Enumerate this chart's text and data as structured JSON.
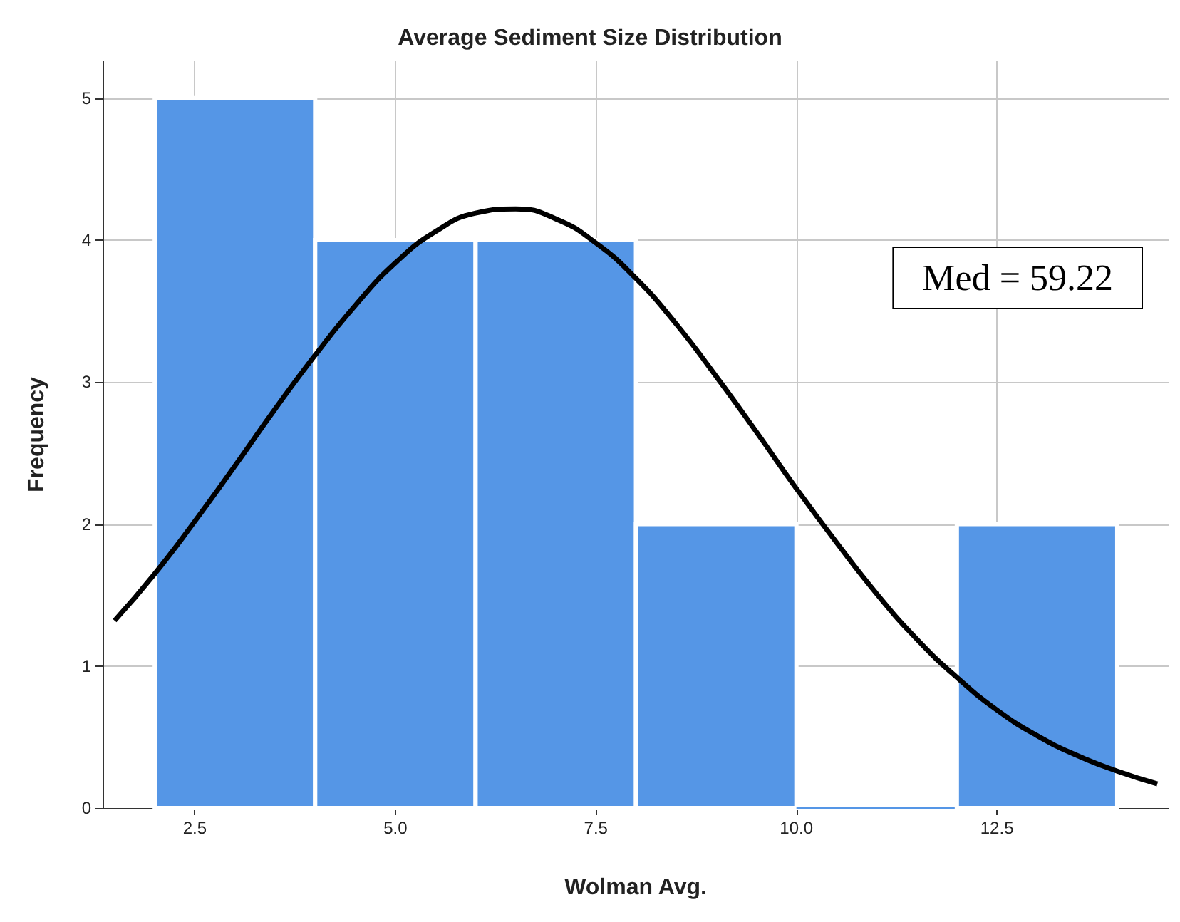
{
  "chart_data": {
    "type": "histogram",
    "title": "Average Sediment Size Distribution",
    "xlabel": "Wolman Avg.",
    "ylabel": "Frequency",
    "bins": [
      2,
      4,
      6,
      8,
      10,
      12,
      14
    ],
    "values": [
      5,
      4,
      4,
      2,
      0,
      2
    ],
    "color": "#5596e6",
    "series": [
      {
        "type": "line",
        "color": "#000000",
        "x": [
          1.5,
          2,
          2.5,
          3,
          3.5,
          4,
          4.5,
          5,
          5.5,
          6,
          6.5,
          7,
          7.5,
          8,
          8.5,
          9,
          9.5,
          10,
          10.5,
          11,
          11.5,
          12,
          12.5,
          13,
          13.5,
          14,
          14.5
        ],
        "values": [
          1.32,
          1.65,
          2.02,
          2.41,
          2.81,
          3.19,
          3.54,
          3.84,
          4.06,
          4.19,
          4.22,
          4.15,
          3.98,
          3.73,
          3.41,
          3.04,
          2.65,
          2.25,
          1.87,
          1.51,
          1.19,
          0.92,
          0.69,
          0.51,
          0.37,
          0.26,
          0.17
        ]
      }
    ],
    "xlim": [
      1.35,
      14.64
    ],
    "xticks": [
      {
        "value": 2.5,
        "label": "2.5"
      },
      {
        "value": 5,
        "label": "5.0"
      },
      {
        "value": 7.5,
        "label": "7.5"
      },
      {
        "value": 10,
        "label": "10.0"
      },
      {
        "value": 12.5,
        "label": "12.5"
      }
    ],
    "ylim": [
      0,
      5.26
    ],
    "yticks": [
      0,
      1,
      2,
      3,
      4,
      5
    ],
    "grid": true,
    "marker": "none",
    "line_style": "solid",
    "annotations": [
      "Med = 59.22"
    ]
  }
}
